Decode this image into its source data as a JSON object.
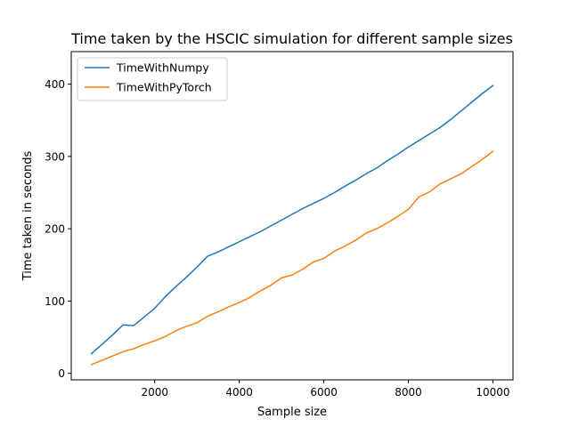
{
  "chart_data": {
    "type": "line",
    "title": "Time taken by the HSCIC simulation for different sample sizes",
    "xlabel": "Sample size",
    "ylabel": "Time taken in seconds",
    "xlim": [
      25,
      10475
    ],
    "ylim": [
      -9,
      445
    ],
    "xticks": [
      2000,
      4000,
      6000,
      8000,
      10000
    ],
    "yticks": [
      0,
      100,
      200,
      300,
      400
    ],
    "grid": false,
    "legend_position": "upper-left",
    "x": [
      500,
      750,
      1000,
      1250,
      1500,
      1750,
      2000,
      2250,
      2500,
      2750,
      3000,
      3250,
      3500,
      3750,
      4000,
      4250,
      4500,
      4750,
      5000,
      5250,
      5500,
      5750,
      6000,
      6250,
      6500,
      6750,
      7000,
      7250,
      7500,
      7750,
      8000,
      8250,
      8500,
      8750,
      9000,
      9250,
      9500,
      9750,
      10000
    ],
    "series": [
      {
        "name": "TimeWithNumpy",
        "color": "#1f77b4",
        "values": [
          27,
          40,
          53,
          67,
          66,
          78,
          90,
          106,
          120,
          133,
          147,
          162,
          168,
          175,
          182,
          189,
          196,
          204,
          212,
          220,
          228,
          235,
          242,
          250,
          259,
          267,
          276,
          284,
          294,
          303,
          313,
          322,
          331,
          340,
          351,
          363,
          375,
          387,
          398
        ]
      },
      {
        "name": "TimeWithPyTorch",
        "color": "#ff7f0e",
        "values": [
          12,
          18,
          24,
          30,
          34,
          40,
          45,
          51,
          59,
          65,
          70,
          79,
          85,
          92,
          98,
          105,
          114,
          122,
          132,
          136,
          144,
          154,
          159,
          169,
          176,
          184,
          194,
          200,
          208,
          217,
          227,
          244,
          251,
          262,
          269,
          276,
          286,
          296,
          307
        ]
      }
    ]
  }
}
